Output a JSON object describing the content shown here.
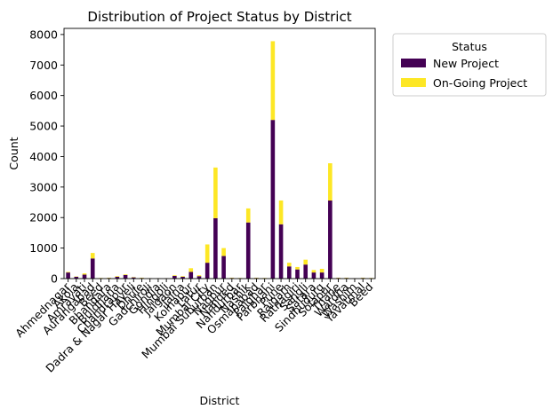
{
  "chart_data": {
    "type": "bar",
    "stacked": true,
    "title": "Distribution of Project Status by District",
    "xlabel": "District",
    "ylabel": "Count",
    "ylim": [
      0,
      8200
    ],
    "yticks": [
      0,
      1000,
      2000,
      3000,
      4000,
      5000,
      6000,
      7000,
      8000
    ],
    "grid": false,
    "legend": {
      "title": "Status",
      "placement": "outside-top-right"
    },
    "categories": [
      "Ahmednagar",
      "Akola",
      "Amravati",
      "Aurangabad",
      "Beed",
      "Bhandara",
      "Buldhana",
      "Chandrapur",
      "Dadra & Nagar Haveli",
      "Dhule",
      "Gadchiroli",
      "Gondia",
      "Hingoli",
      "Jalgaon",
      "Jalna",
      "Kolhapur",
      "Latur",
      "Mumbai City",
      "Mumbai Suburban",
      "Nagpur",
      "Nanded",
      "Nandurbar",
      "Nashik",
      "Osmanabad",
      "Palghar",
      "Parbhani",
      "Pune",
      "Raigarh",
      "Ratnagiri",
      "Sangli",
      "Satara",
      "Sindhudurg",
      "Solapur",
      "Thane",
      "Wardha",
      "Washim",
      "Yavatmal",
      "Beed"
    ],
    "tick_labels": [
      "Ahmednagar",
      "Akola",
      "Amravati",
      "Aurangabad",
      "Beed",
      "Bhandara",
      "Buldhana",
      "Chandrapur",
      "Dadra & Nagar Haveli",
      "Dhule",
      "Gadchiroli",
      "Gondia",
      "Hingoli",
      "Jalgaon",
      "Jalna",
      "Kolhapur",
      "Latur",
      "Mumbai City",
      "Mumbai Suburban",
      "Nagpur",
      "Nanded",
      "Nandurbar",
      "Nashik",
      "Osmanabad",
      "Palghar",
      "Parbhani",
      "Pune",
      "Raigarh",
      "Ratnagiri",
      "Sangli",
      "Satara",
      "Sindhudurg",
      "Solapur",
      "Thane",
      "Wardha",
      "Washim",
      "Yavatmal",
      "Beed"
    ],
    "series": [
      {
        "name": "New Project",
        "color": "#440154",
        "values": [
          200,
          60,
          130,
          660,
          10,
          20,
          60,
          120,
          40,
          20,
          10,
          10,
          10,
          90,
          60,
          220,
          80,
          520,
          1980,
          740,
          20,
          10,
          1840,
          20,
          10,
          5200,
          1780,
          400,
          300,
          460,
          200,
          200,
          2560,
          20,
          20,
          10,
          20,
          10
        ]
      },
      {
        "name": "On-Going Project",
        "color": "#fde725",
        "values": [
          20,
          10,
          40,
          180,
          10,
          10,
          20,
          20,
          10,
          10,
          5,
          5,
          5,
          20,
          20,
          120,
          30,
          600,
          1660,
          260,
          10,
          10,
          460,
          10,
          10,
          2580,
          780,
          120,
          80,
          160,
          80,
          120,
          1220,
          10,
          10,
          5,
          10,
          10
        ]
      }
    ]
  }
}
